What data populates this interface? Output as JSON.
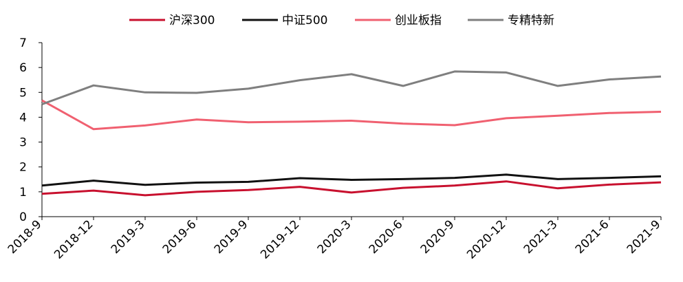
{
  "chart_data": {
    "type": "line",
    "categories": [
      "2018-9",
      "2018-12",
      "2019-3",
      "2019-6",
      "2019-9",
      "2019-12",
      "2020-3",
      "2020-6",
      "2020-9",
      "2020-12",
      "2021-3",
      "2021-6",
      "2021-9"
    ],
    "ylim": [
      0,
      7
    ],
    "yticks": [
      "0",
      "1",
      "2",
      "3",
      "4",
      "5",
      "6",
      "7"
    ],
    "grid": false,
    "legend_position": "top",
    "series": [
      {
        "name": "沪深300",
        "color": "#c8102e",
        "values": [
          0.92,
          1.05,
          0.86,
          1.0,
          1.07,
          1.2,
          0.97,
          1.16,
          1.25,
          1.42,
          1.14,
          1.29,
          1.38
        ]
      },
      {
        "name": "中证500",
        "color": "#111111",
        "values": [
          1.25,
          1.45,
          1.28,
          1.37,
          1.4,
          1.55,
          1.48,
          1.51,
          1.56,
          1.69,
          1.51,
          1.56,
          1.62
        ]
      },
      {
        "name": "创业板指",
        "color": "#f06070",
        "values": [
          4.68,
          3.52,
          3.67,
          3.91,
          3.8,
          3.82,
          3.86,
          3.74,
          3.68,
          3.96,
          4.06,
          4.17,
          4.22
        ]
      },
      {
        "name": "专精特新",
        "color": "#7f7f7f",
        "values": [
          4.52,
          5.28,
          5.0,
          4.98,
          5.15,
          5.49,
          5.73,
          5.26,
          5.84,
          5.8,
          5.26,
          5.52,
          5.64
        ]
      }
    ]
  }
}
